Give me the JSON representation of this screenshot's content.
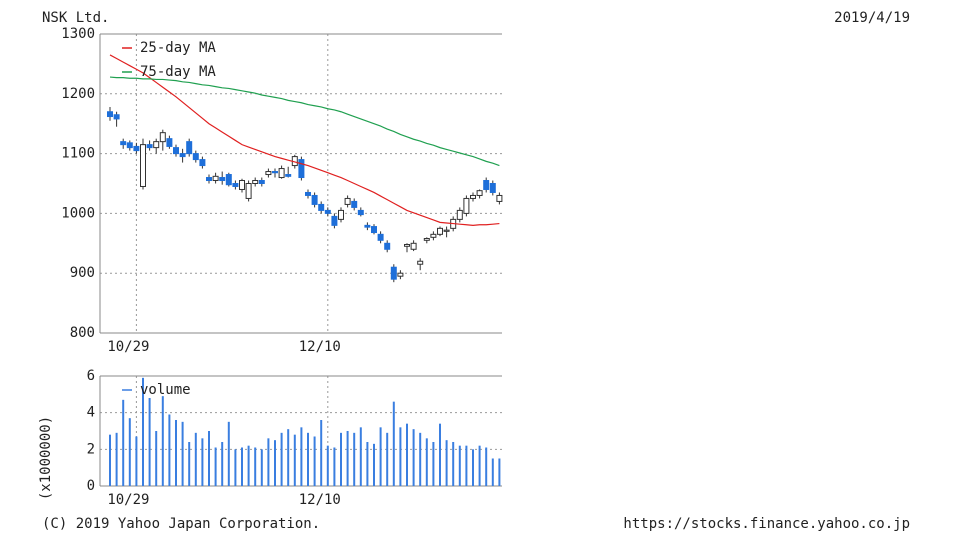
{
  "chart_data": [
    {
      "type": "candlestick",
      "title": "NSK Ltd.",
      "date": "2019/4/19",
      "categories": [
        null,
        null,
        null,
        null,
        "10/29",
        null,
        null,
        null,
        null,
        null,
        null,
        null,
        null,
        null,
        null,
        null,
        null,
        null,
        null,
        null,
        null,
        null,
        null,
        null,
        null,
        null,
        null,
        null,
        null,
        null,
        null,
        null,
        null,
        "12/10",
        null,
        null,
        null,
        null,
        null,
        null,
        null,
        null,
        null,
        null,
        null,
        null,
        null,
        null,
        null,
        null,
        null,
        null,
        null,
        null,
        null,
        null,
        null,
        null,
        null,
        null
      ],
      "open": [
        1170,
        1165,
        1120,
        1118,
        1112,
        1045,
        1115,
        1110,
        1120,
        1125,
        1110,
        1100,
        1120,
        1100,
        1090,
        1060,
        1055,
        1060,
        1065,
        1050,
        1040,
        1025,
        1050,
        1055,
        1065,
        1070,
        1060,
        1065,
        1080,
        1090,
        1035,
        1030,
        1015,
        1005,
        995,
        990,
        1015,
        1020,
        1005,
        980,
        978,
        965,
        950,
        910,
        895,
        945,
        940,
        915,
        955,
        960,
        965,
        970,
        975,
        990,
        1000,
        1025,
        1030,
        1055,
        1050,
        1020
      ],
      "high": [
        1178,
        1170,
        1125,
        1122,
        1118,
        1125,
        1122,
        1125,
        1140,
        1130,
        1115,
        1108,
        1125,
        1105,
        1095,
        1065,
        1068,
        1070,
        1068,
        1055,
        1058,
        1055,
        1060,
        1060,
        1075,
        1075,
        1080,
        1078,
        1098,
        1095,
        1040,
        1035,
        1020,
        1010,
        1000,
        1010,
        1030,
        1025,
        1010,
        985,
        982,
        970,
        955,
        915,
        905,
        950,
        955,
        925,
        960,
        970,
        978,
        978,
        995,
        1010,
        1030,
        1035,
        1040,
        1060,
        1055,
        1035
      ],
      "low": [
        1155,
        1145,
        1108,
        1105,
        1100,
        1040,
        1105,
        1100,
        1105,
        1108,
        1095,
        1085,
        1095,
        1085,
        1075,
        1050,
        1050,
        1048,
        1045,
        1040,
        1035,
        1020,
        1045,
        1045,
        1060,
        1060,
        1058,
        1060,
        1075,
        1055,
        1025,
        1010,
        1000,
        995,
        975,
        985,
        1010,
        1005,
        995,
        972,
        965,
        950,
        935,
        885,
        890,
        935,
        937,
        905,
        950,
        955,
        962,
        960,
        970,
        985,
        995,
        1020,
        1025,
        1035,
        1030,
        1015
      ],
      "close": [
        1162,
        1158,
        1115,
        1110,
        1105,
        1115,
        1110,
        1120,
        1135,
        1112,
        1100,
        1095,
        1100,
        1090,
        1080,
        1055,
        1062,
        1055,
        1048,
        1045,
        1055,
        1050,
        1055,
        1050,
        1070,
        1068,
        1075,
        1062,
        1095,
        1060,
        1030,
        1015,
        1005,
        1000,
        980,
        1005,
        1025,
        1010,
        998,
        977,
        968,
        955,
        940,
        890,
        900,
        948,
        950,
        920,
        958,
        965,
        975,
        972,
        990,
        1005,
        1025,
        1030,
        1038,
        1040,
        1035,
        1030
      ],
      "up_color": "#ffffff",
      "down_color": "#1e6fd9",
      "series": [
        {
          "name": "25-day MA",
          "color": "#e02020",
          "values": [
            1265,
            1259,
            1253,
            1247,
            1241,
            1235,
            1227,
            1219,
            1211,
            1203,
            1195,
            1186,
            1177,
            1168,
            1159,
            1150,
            1143,
            1136,
            1129,
            1122,
            1115,
            1111,
            1107,
            1103,
            1099,
            1095,
            1092,
            1089,
            1086,
            1083,
            1080,
            1076,
            1072,
            1068,
            1064,
            1060,
            1055,
            1050,
            1045,
            1040,
            1035,
            1029,
            1023,
            1017,
            1011,
            1005,
            1001,
            997,
            993,
            989,
            985,
            984,
            983,
            982,
            981,
            980,
            981,
            981,
            982,
            983
          ]
        },
        {
          "name": "75-day MA",
          "color": "#20a050",
          "values": [
            1228,
            1227,
            1227,
            1226,
            1226,
            1225,
            1225,
            1224,
            1224,
            1223,
            1222,
            1220,
            1219,
            1217,
            1215,
            1214,
            1212,
            1210,
            1209,
            1207,
            1205,
            1203,
            1201,
            1198,
            1196,
            1194,
            1192,
            1189,
            1187,
            1185,
            1182,
            1180,
            1178,
            1175,
            1173,
            1170,
            1166,
            1162,
            1158,
            1154,
            1150,
            1146,
            1141,
            1137,
            1132,
            1128,
            1124,
            1121,
            1117,
            1114,
            1110,
            1107,
            1104,
            1101,
            1098,
            1095,
            1091,
            1087,
            1084,
            1080
          ]
        }
      ],
      "ylim": [
        800,
        1300
      ],
      "yticks": [
        800,
        900,
        1000,
        1100,
        1200,
        1300
      ],
      "grid": true
    },
    {
      "type": "bar",
      "ylabel": "(x1000000)",
      "categories": [
        null,
        null,
        null,
        null,
        "10/29",
        null,
        null,
        null,
        null,
        null,
        null,
        null,
        null,
        null,
        null,
        null,
        null,
        null,
        null,
        null,
        null,
        null,
        null,
        null,
        null,
        null,
        null,
        null,
        null,
        null,
        null,
        null,
        null,
        "12/10",
        null,
        null,
        null,
        null,
        null,
        null,
        null,
        null,
        null,
        null,
        null,
        null,
        null,
        null,
        null,
        null,
        null,
        null,
        null,
        null,
        null,
        null,
        null,
        null,
        null,
        null
      ],
      "series": [
        {
          "name": "volume",
          "color": "#3a7ee0",
          "values": [
            2.8,
            2.9,
            4.7,
            3.7,
            2.7,
            5.9,
            4.8,
            3.0,
            4.9,
            3.9,
            3.6,
            3.5,
            2.4,
            2.9,
            2.6,
            3.0,
            2.1,
            2.4,
            3.5,
            2.0,
            2.1,
            2.2,
            2.1,
            2.0,
            2.6,
            2.5,
            2.9,
            3.1,
            2.8,
            3.2,
            2.9,
            2.7,
            3.6,
            2.2,
            2.1,
            2.9,
            3.0,
            2.9,
            3.2,
            2.4,
            2.3,
            3.2,
            2.9,
            4.6,
            3.2,
            3.4,
            3.1,
            2.9,
            2.6,
            2.4,
            3.4,
            2.5,
            2.4,
            2.2,
            2.2,
            2.0,
            2.2,
            2.1,
            1.5,
            1.5
          ]
        }
      ],
      "ylim": [
        0,
        6
      ],
      "yticks": [
        0,
        2,
        4,
        6
      ],
      "grid": true
    }
  ],
  "footer": {
    "copyright": "(C) 2019 Yahoo Japan Corporation.",
    "url": "https://stocks.finance.yahoo.co.jp"
  }
}
